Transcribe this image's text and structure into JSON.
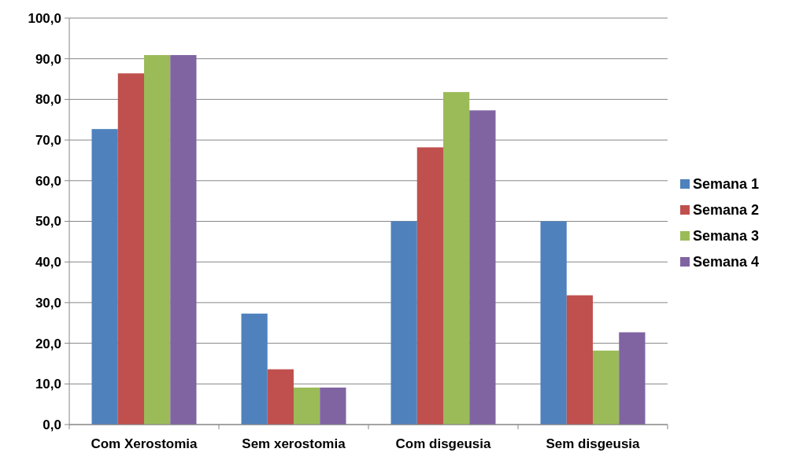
{
  "chart_data": {
    "type": "bar",
    "categories": [
      "Com Xerostomia",
      "Sem xerostomia",
      "Com disgeusia",
      "Sem disgeusia"
    ],
    "series": [
      {
        "name": "Semana 1",
        "color": "#4f81bd",
        "values": [
          72.7,
          27.3,
          50.0,
          50.0
        ]
      },
      {
        "name": "Semana 2",
        "color": "#c0504d",
        "values": [
          86.4,
          13.6,
          68.2,
          31.8
        ]
      },
      {
        "name": "Semana 3",
        "color": "#9bbb59",
        "values": [
          90.9,
          9.1,
          81.8,
          18.2
        ]
      },
      {
        "name": "Semana 4",
        "color": "#8064a2",
        "values": [
          90.9,
          9.1,
          77.3,
          22.7
        ]
      }
    ],
    "ylim": [
      0,
      100
    ],
    "yticks": [
      {
        "value": 0,
        "label": "0,0"
      },
      {
        "value": 10,
        "label": "10,0"
      },
      {
        "value": 20,
        "label": "20,0"
      },
      {
        "value": 30,
        "label": "30,0"
      },
      {
        "value": 40,
        "label": "40,0"
      },
      {
        "value": 50,
        "label": "50,0"
      },
      {
        "value": 60,
        "label": "60,0"
      },
      {
        "value": 70,
        "label": "70,0"
      },
      {
        "value": 80,
        "label": "80,0"
      },
      {
        "value": 90,
        "label": "90,0"
      },
      {
        "value": 100,
        "label": "100,0"
      }
    ],
    "grid": "y",
    "legend": "right"
  }
}
